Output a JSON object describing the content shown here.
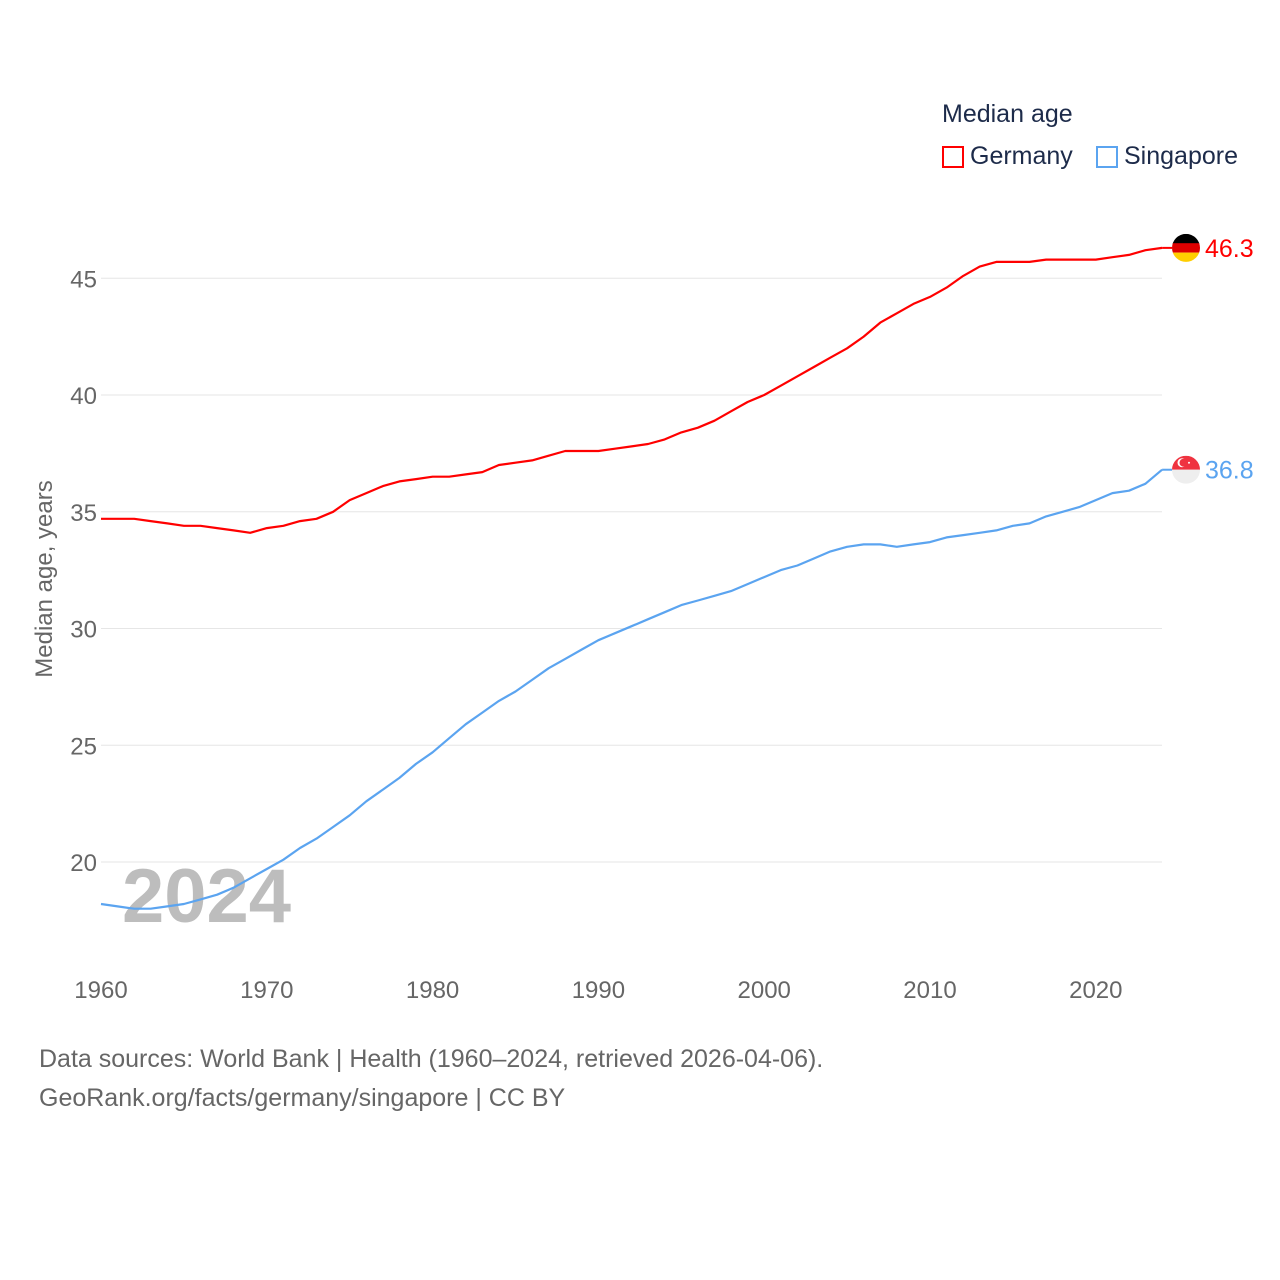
{
  "chart_data": {
    "type": "line",
    "title": "Median age",
    "xlabel": "",
    "ylabel": "Median age, years",
    "xlim": [
      1960,
      2024
    ],
    "ylim": [
      16,
      47
    ],
    "yticks": [
      20,
      25,
      30,
      35,
      40,
      45
    ],
    "xticks": [
      1960,
      1970,
      1980,
      1990,
      2000,
      2010,
      2020
    ],
    "grid": true,
    "legend": "top-right",
    "year_watermark": "2024",
    "x": [
      1960,
      1961,
      1962,
      1963,
      1964,
      1965,
      1966,
      1967,
      1968,
      1969,
      1970,
      1971,
      1972,
      1973,
      1974,
      1975,
      1976,
      1977,
      1978,
      1979,
      1980,
      1981,
      1982,
      1983,
      1984,
      1985,
      1986,
      1987,
      1988,
      1989,
      1990,
      1991,
      1992,
      1993,
      1994,
      1995,
      1996,
      1997,
      1998,
      1999,
      2000,
      2001,
      2002,
      2003,
      2004,
      2005,
      2006,
      2007,
      2008,
      2009,
      2010,
      2011,
      2012,
      2013,
      2014,
      2015,
      2016,
      2017,
      2018,
      2019,
      2020,
      2021,
      2022,
      2023,
      2024
    ],
    "series": [
      {
        "name": "Germany",
        "color": "#ff0000",
        "end_label": "46.3",
        "flag": "germany",
        "values": [
          34.7,
          34.7,
          34.7,
          34.6,
          34.5,
          34.4,
          34.4,
          34.3,
          34.2,
          34.1,
          34.3,
          34.4,
          34.6,
          34.7,
          35.0,
          35.5,
          35.8,
          36.1,
          36.3,
          36.4,
          36.5,
          36.5,
          36.6,
          36.7,
          37.0,
          37.1,
          37.2,
          37.4,
          37.6,
          37.6,
          37.6,
          37.7,
          37.8,
          37.9,
          38.1,
          38.4,
          38.6,
          38.9,
          39.3,
          39.7,
          40.0,
          40.4,
          40.8,
          41.2,
          41.6,
          42.0,
          42.5,
          43.1,
          43.5,
          43.9,
          44.2,
          44.6,
          45.1,
          45.5,
          45.7,
          45.7,
          45.7,
          45.8,
          45.8,
          45.8,
          45.8,
          45.9,
          46.0,
          46.2,
          46.3
        ]
      },
      {
        "name": "Singapore",
        "color": "#5ba4f0",
        "end_label": "36.8",
        "flag": "singapore",
        "values": [
          18.2,
          18.1,
          18.0,
          18.0,
          18.1,
          18.2,
          18.4,
          18.6,
          18.9,
          19.3,
          19.7,
          20.1,
          20.6,
          21.0,
          21.5,
          22.0,
          22.6,
          23.1,
          23.6,
          24.2,
          24.7,
          25.3,
          25.9,
          26.4,
          26.9,
          27.3,
          27.8,
          28.3,
          28.7,
          29.1,
          29.5,
          29.8,
          30.1,
          30.4,
          30.7,
          31.0,
          31.2,
          31.4,
          31.6,
          31.9,
          32.2,
          32.5,
          32.7,
          33.0,
          33.3,
          33.5,
          33.6,
          33.6,
          33.5,
          33.6,
          33.7,
          33.9,
          34.0,
          34.1,
          34.2,
          34.4,
          34.5,
          34.8,
          35.0,
          35.2,
          35.5,
          35.8,
          35.9,
          36.2,
          36.8
        ]
      }
    ]
  },
  "footer": {
    "line1": "Data sources: World Bank | Health (1960–2024, retrieved 2026-04-06).",
    "line2": "GeoRank.org/facts/germany/singapore | CC BY"
  }
}
